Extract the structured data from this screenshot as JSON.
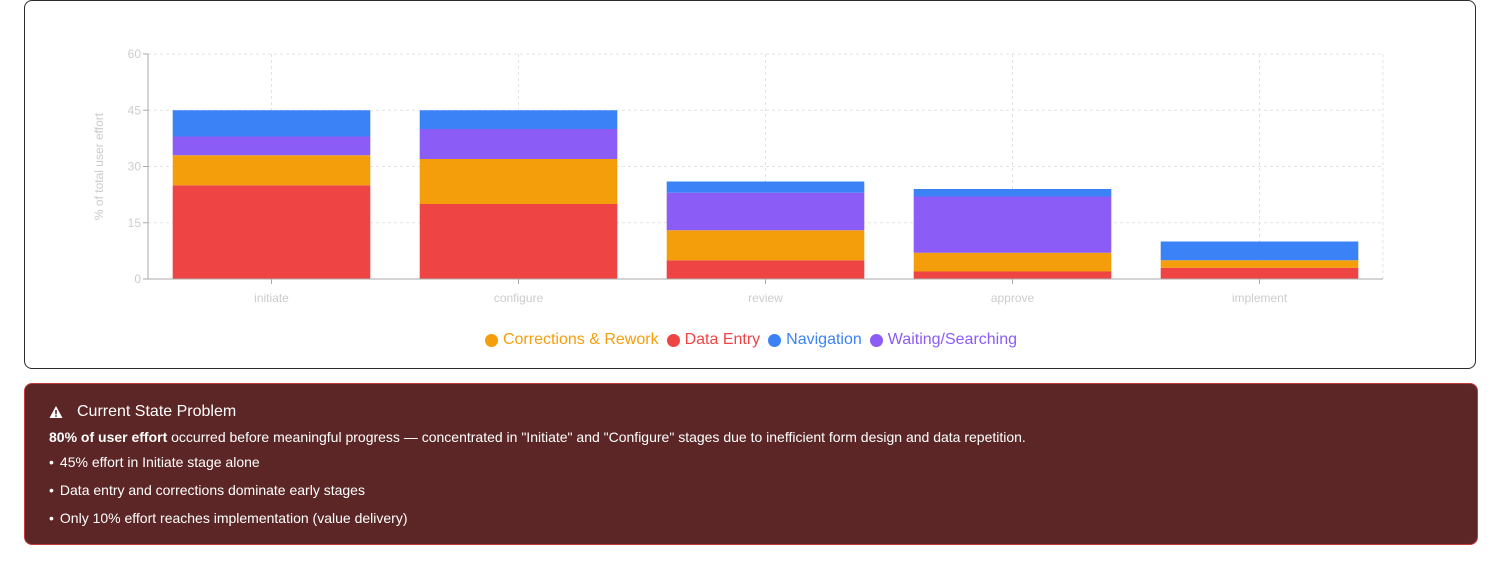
{
  "chart_data": {
    "type": "bar",
    "stacked": true,
    "categories": [
      "initiate",
      "configure",
      "review",
      "approve",
      "implement"
    ],
    "ylabel": "% of total user effort",
    "xlabel": "",
    "ylim": [
      0,
      60
    ],
    "yticks": [
      0,
      15,
      30,
      45,
      60
    ],
    "grid": true,
    "legend_position": "bottom",
    "series": [
      {
        "name": "Data Entry",
        "color": "#ef4444",
        "values": [
          25,
          20,
          5,
          2,
          3
        ]
      },
      {
        "name": "Corrections & Rework",
        "color": "#f59e0b",
        "values": [
          8,
          12,
          8,
          5,
          2
        ]
      },
      {
        "name": "Waiting/Searching",
        "color": "#8b5cf6",
        "values": [
          5,
          8,
          10,
          15,
          0
        ]
      },
      {
        "name": "Navigation",
        "color": "#3b82f6",
        "values": [
          7,
          5,
          3,
          2,
          5
        ]
      }
    ],
    "legend_order": [
      "Corrections & Rework",
      "Data Entry",
      "Navigation",
      "Waiting/Searching"
    ]
  },
  "problem": {
    "icon": "warning-icon",
    "title": "Current State Problem",
    "desc_bold": "80% of user effort",
    "desc_rest": " occurred before meaningful progress — concentrated in \"Initiate\" and \"Configure\" stages due to inefficient form design and data repetition.",
    "bullets": [
      "45% effort in Initiate stage alone",
      "Data entry and corrections dominate early stages",
      "Only 10% effort reaches implementation (value delivery)"
    ]
  }
}
